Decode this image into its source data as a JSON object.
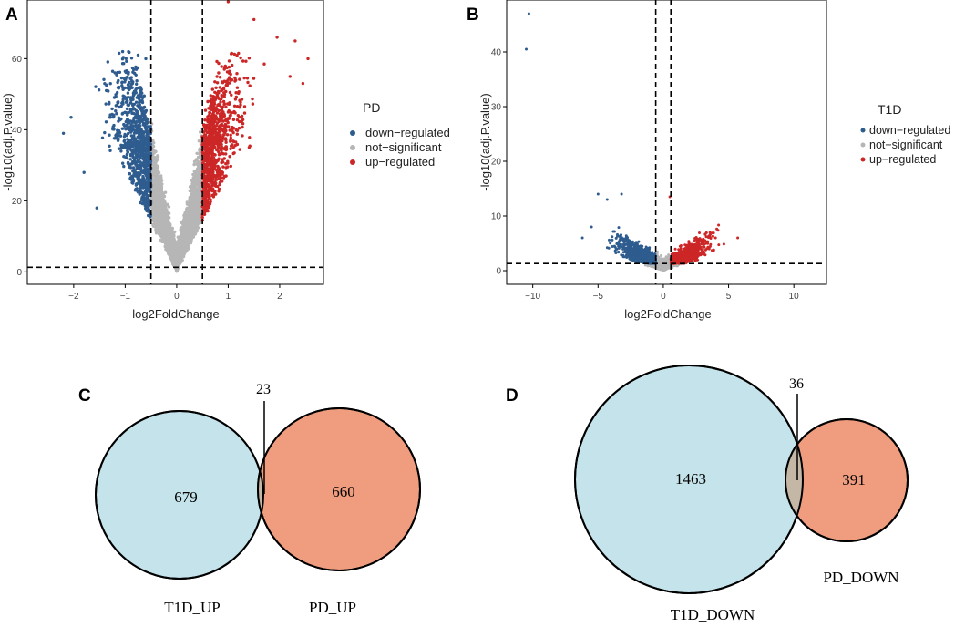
{
  "colors": {
    "down": "#2e5c8f",
    "ns": "#b6b6b6",
    "up": "#cc2626",
    "venn_t1d": "#c4e3ea",
    "venn_pd": "#ef9d7e",
    "venn_overlap": "#c4b7a6"
  },
  "chart_data": [
    {
      "panel": "A",
      "type": "scatter",
      "subtype": "volcano",
      "xlabel": "log2FoldChange",
      "ylabel": "-log10(adj.P.value)",
      "xlim": [
        -2.9,
        2.85
      ],
      "ylim": [
        -3.5,
        76.5
      ],
      "xticks": [
        -2,
        -1,
        0,
        1,
        2
      ],
      "yticks": [
        0,
        20,
        40,
        60
      ],
      "vlines": [
        -0.5,
        0.5
      ],
      "hline": 1.3,
      "legend_title": "PD",
      "legend_items": [
        "down−regulated",
        "not−significant",
        "up−regulated"
      ],
      "outliers": {
        "down": [
          [
            -2.2,
            39
          ],
          [
            -2.05,
            43.5
          ],
          [
            -1.8,
            28
          ],
          [
            -1.55,
            18
          ],
          [
            -1.2,
            56
          ],
          [
            -1.05,
            62
          ],
          [
            -0.75,
            61
          ],
          [
            -0.6,
            60
          ]
        ],
        "up": [
          [
            1.0,
            76
          ],
          [
            1.5,
            71
          ],
          [
            1.95,
            66
          ],
          [
            2.3,
            65
          ],
          [
            2.55,
            60
          ],
          [
            2.45,
            53
          ],
          [
            2.2,
            55
          ],
          [
            1.7,
            58.5
          ]
        ]
      }
    },
    {
      "panel": "B",
      "type": "scatter",
      "subtype": "volcano",
      "xlabel": "log2FoldChange",
      "ylabel": "-log10(adj.P.value)",
      "xlim": [
        -12,
        12.5
      ],
      "ylim": [
        -2.5,
        49.5
      ],
      "xticks": [
        -10,
        -5,
        0,
        5,
        10
      ],
      "yticks": [
        0,
        10,
        20,
        30,
        40
      ],
      "vlines": [
        -0.58,
        0.58
      ],
      "hline": 1.3,
      "legend_title": "T1D",
      "legend_items": [
        "down−regulated",
        "not−significant",
        "up−regulated"
      ],
      "outliers": {
        "down": [
          [
            -10.3,
            47
          ],
          [
            -10.5,
            40.5
          ],
          [
            -5,
            14
          ],
          [
            -4.3,
            13
          ],
          [
            -3.2,
            14
          ],
          [
            -6.2,
            6
          ],
          [
            -5.5,
            8
          ]
        ],
        "up": [
          [
            0.5,
            13.5
          ],
          [
            4,
            6
          ],
          [
            5.7,
            6
          ],
          [
            3.5,
            4
          ]
        ]
      }
    },
    {
      "panel": "C",
      "type": "venn",
      "sets": [
        {
          "label": "T1D_UP",
          "only_count": "679"
        },
        {
          "label": "PD_UP",
          "only_count": "660"
        }
      ],
      "intersection": "23"
    },
    {
      "panel": "D",
      "type": "venn",
      "sets": [
        {
          "label": "T1D_DOWN",
          "only_count": "1463"
        },
        {
          "label": "PD_DOWN",
          "only_count": "391"
        }
      ],
      "intersection": "36"
    }
  ]
}
